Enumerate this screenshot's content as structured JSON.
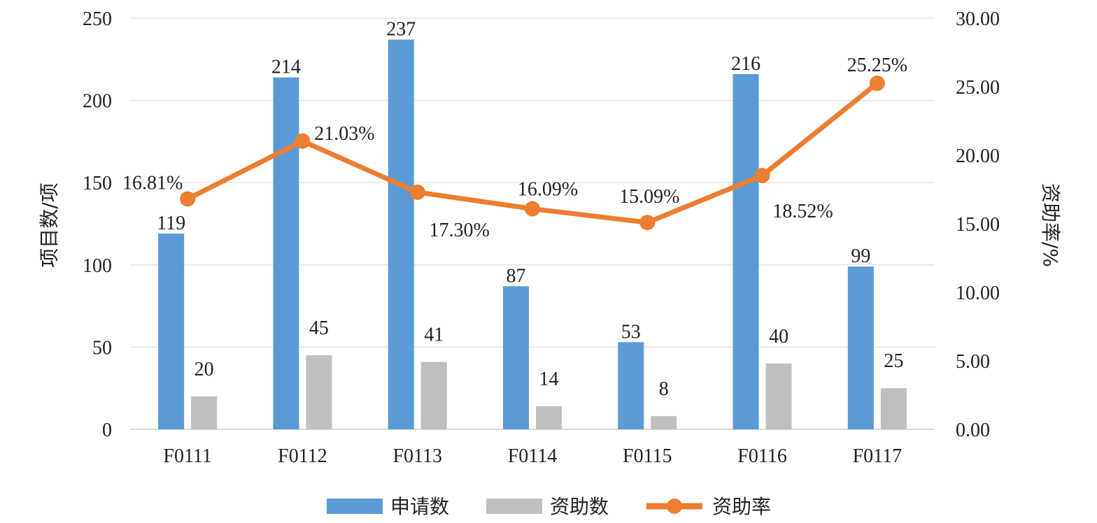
{
  "chart_data": {
    "type": "bar",
    "categories": [
      "F0111",
      "F0112",
      "F0113",
      "F0114",
      "F0115",
      "F0116",
      "F0117"
    ],
    "series": [
      {
        "name": "申请数",
        "type": "bar",
        "axis": "left",
        "color": "#5B9BD5",
        "values": [
          119,
          214,
          237,
          87,
          53,
          216,
          99
        ]
      },
      {
        "name": "资助数",
        "type": "bar",
        "axis": "left",
        "color": "#BFBFBF",
        "values": [
          20,
          45,
          41,
          14,
          8,
          40,
          25
        ]
      },
      {
        "name": "资助率",
        "type": "line",
        "axis": "right",
        "color": "#ED7D31",
        "values": [
          16.81,
          21.03,
          17.3,
          16.09,
          15.09,
          18.52,
          25.25
        ]
      }
    ],
    "rate_labels": [
      "16.81%",
      "21.03%",
      "17.30%",
      "16.09%",
      "15.09%",
      "18.52%",
      "25.25%"
    ],
    "ylabel": "项目数/项",
    "y2label": "资助率/%",
    "ylim": [
      0,
      250
    ],
    "y2lim": [
      0,
      30
    ],
    "yticks": [
      "0",
      "50",
      "100",
      "150",
      "200",
      "250"
    ],
    "y2ticks": [
      "0.00",
      "5.00",
      "10.00",
      "15.00",
      "20.00",
      "25.00",
      "30.00"
    ],
    "grid": true,
    "legend_position": "bottom"
  }
}
